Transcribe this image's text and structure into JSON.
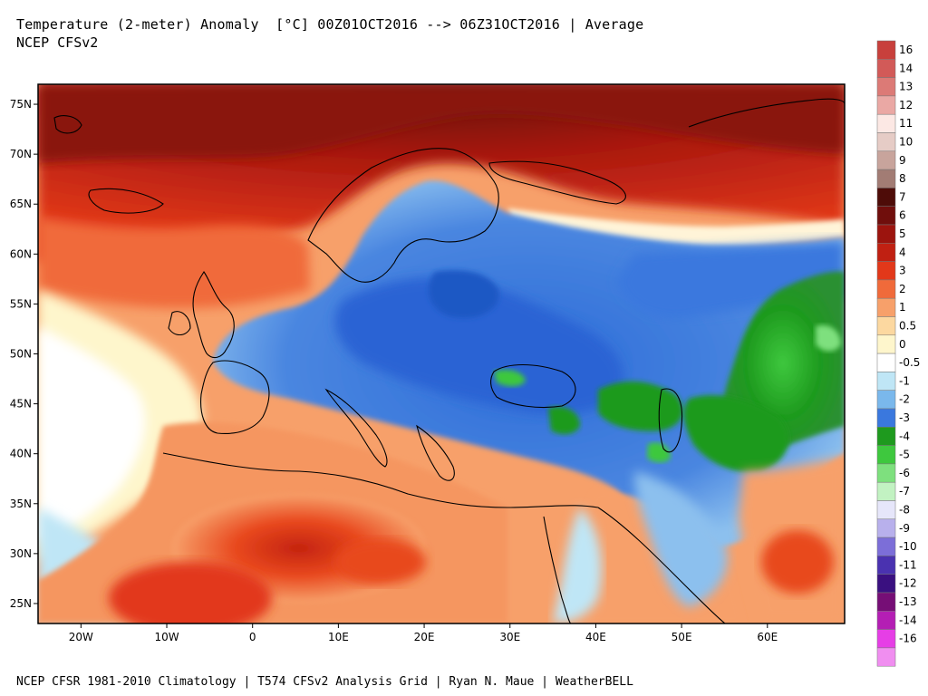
{
  "title": "Temperature (2-meter) Anomaly  [°C] 00Z01OCT2016 --> 06Z31OCT2016 | Average",
  "subtitle": "NCEP CFSv2",
  "credit": "NCEP CFSR 1981-2010 Climatology | T574 CFSv2 Analysis Grid | Ryan N. Maue | WeatherBELL",
  "map": {
    "lon_range": [
      -25,
      69
    ],
    "lat_range": [
      23,
      77
    ],
    "lat_ticks": [
      {
        "value": 75,
        "label": "75N"
      },
      {
        "value": 70,
        "label": "70N"
      },
      {
        "value": 65,
        "label": "65N"
      },
      {
        "value": 60,
        "label": "60N"
      },
      {
        "value": 55,
        "label": "55N"
      },
      {
        "value": 50,
        "label": "50N"
      },
      {
        "value": 45,
        "label": "45N"
      },
      {
        "value": 40,
        "label": "40N"
      },
      {
        "value": 35,
        "label": "35N"
      },
      {
        "value": 30,
        "label": "30N"
      },
      {
        "value": 25,
        "label": "25N"
      }
    ],
    "lon_ticks": [
      {
        "value": -20,
        "label": "20W"
      },
      {
        "value": -10,
        "label": "10W"
      },
      {
        "value": 0,
        "label": "0"
      },
      {
        "value": 10,
        "label": "10E"
      },
      {
        "value": 20,
        "label": "20E"
      },
      {
        "value": 30,
        "label": "30E"
      },
      {
        "value": 40,
        "label": "40E"
      },
      {
        "value": 50,
        "label": "50E"
      },
      {
        "value": 60,
        "label": "60E"
      }
    ]
  },
  "legend": {
    "entries": [
      {
        "label": "16",
        "color": "#c8403c"
      },
      {
        "label": "14",
        "color": "#d25a58"
      },
      {
        "label": "13",
        "color": "#dc7a76"
      },
      {
        "label": "12",
        "color": "#eaa8a4"
      },
      {
        "label": "11",
        "color": "#fce8e4"
      },
      {
        "label": "10",
        "color": "#e6ccc6"
      },
      {
        "label": "9",
        "color": "#c8a49c"
      },
      {
        "label": "8",
        "color": "#a27c74"
      },
      {
        "label": "7",
        "color": "#4e0c08"
      },
      {
        "label": "6",
        "color": "#700e0c"
      },
      {
        "label": "5",
        "color": "#9c140e"
      },
      {
        "label": "4",
        "color": "#c02012"
      },
      {
        "label": "3",
        "color": "#e2381a"
      },
      {
        "label": "2",
        "color": "#f06a3a"
      },
      {
        "label": "1",
        "color": "#f7a06a"
      },
      {
        "label": "0.5",
        "color": "#fcd8a0"
      },
      {
        "label": "0",
        "color": "#fef6cc"
      },
      {
        "label": "-0.5",
        "color": "#ffffff"
      },
      {
        "label": "-1",
        "color": "#bfe6f6"
      },
      {
        "label": "-2",
        "color": "#7ab8ec"
      },
      {
        "label": "-3",
        "color": "#3a78de"
      },
      {
        "label": "-4",
        "color": "#1e9a1e"
      },
      {
        "label": "-5",
        "color": "#3ec83e"
      },
      {
        "label": "-6",
        "color": "#7ee07e"
      },
      {
        "label": "-7",
        "color": "#c2f2c2"
      },
      {
        "label": "-8",
        "color": "#e6e6fa"
      },
      {
        "label": "-9",
        "color": "#b8b0ec"
      },
      {
        "label": "-10",
        "color": "#7c6ed8"
      },
      {
        "label": "-11",
        "color": "#4a32b0"
      },
      {
        "label": "-12",
        "color": "#3a1080"
      },
      {
        "label": "-13",
        "color": "#760e76"
      },
      {
        "label": "-14",
        "color": "#b41eb4"
      },
      {
        "label": "-16",
        "color": "#e63ee6"
      },
      {
        "label": "",
        "color": "#f08ef0"
      }
    ]
  }
}
